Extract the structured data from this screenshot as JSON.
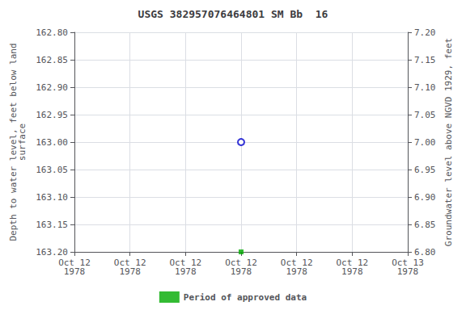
{
  "chart_data": {
    "type": "scatter",
    "title": "USGS 382957076464801 SM Bb  16",
    "categories": [
      "Oct 12\n1978",
      "Oct 12\n1978",
      "Oct 12\n1978",
      "Oct 12\n1978",
      "Oct 12\n1978",
      "Oct 12\n1978",
      "Oct 13\n1978"
    ],
    "series": [
      {
        "color": "#0000cc",
        "marker": "open circle",
        "values": [
          null,
          null,
          null,
          163.0,
          null,
          null,
          null
        ]
      },
      {
        "name": "Period of approved data",
        "color": "#00aa00",
        "marker": "square",
        "values": [
          null,
          null,
          null,
          163.2,
          null,
          null,
          null
        ]
      }
    ],
    "y_label": "Depth to water level, feet below land\nsurface",
    "y2_label": "Groundwater level above NGVD 1929, feet",
    "ylim": [
      163.2,
      162.8
    ],
    "yticks": [
      {
        "value": 162.8,
        "label": "162.80"
      },
      {
        "value": 162.85,
        "label": "162.85"
      },
      {
        "value": 162.9,
        "label": "162.90"
      },
      {
        "value": 162.95,
        "label": "162.95"
      },
      {
        "value": 163.0,
        "label": "163.00"
      },
      {
        "value": 163.05,
        "label": "163.05"
      },
      {
        "value": 163.1,
        "label": "163.10"
      },
      {
        "value": 163.15,
        "label": "163.15"
      },
      {
        "value": 163.2,
        "label": "163.20"
      }
    ],
    "y2lim": [
      6.8,
      7.2
    ],
    "y2ticks": [
      {
        "value": 7.2,
        "label": "7.20"
      },
      {
        "value": 7.15,
        "label": "7.15"
      },
      {
        "value": 7.1,
        "label": "7.10"
      },
      {
        "value": 7.05,
        "label": "7.05"
      },
      {
        "value": 7.0,
        "label": "7.00"
      },
      {
        "value": 6.95,
        "label": "6.95"
      },
      {
        "value": 6.9,
        "label": "6.90"
      },
      {
        "value": 6.85,
        "label": "6.85"
      },
      {
        "value": 6.8,
        "label": "6.80"
      }
    ],
    "grid": true,
    "legend": "bottom"
  }
}
